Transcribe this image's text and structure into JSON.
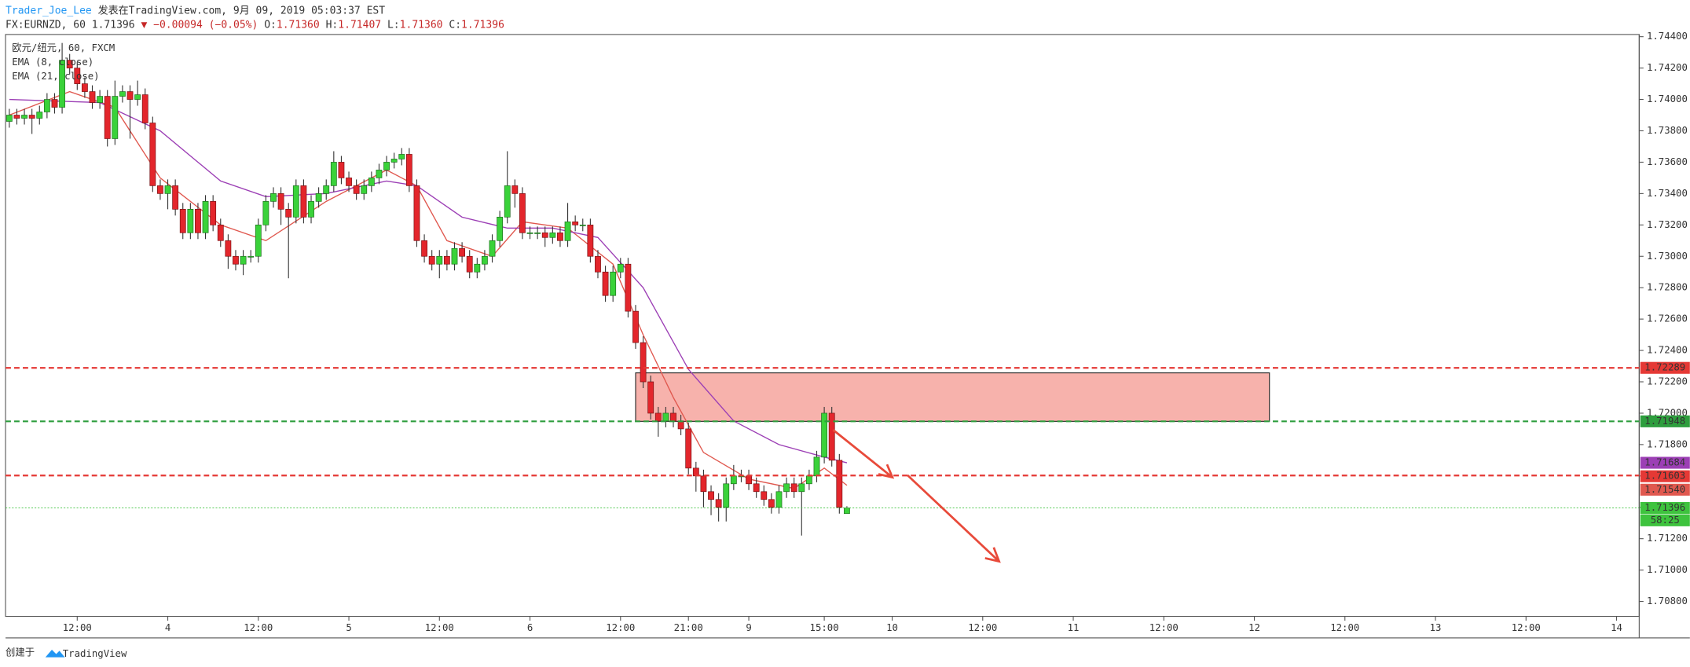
{
  "header": {
    "author": "Trader_Joe_Lee",
    "published": "发表在TradingView.com, 9月 09, 2019 05:03:37 EST",
    "symbol": "FX:EURNZD, 60",
    "last": "1.71396",
    "change": "▼ −0.00094 (−0.05%)",
    "o_label": "O:",
    "o_value": "1.71360",
    "h_label": "H:",
    "h_value": "1.71407",
    "l_label": "L:",
    "l_value": "1.71360",
    "c_label": "C:",
    "c_value": "1.71396"
  },
  "footer": {
    "created": "创建于",
    "brand": "TradingView"
  },
  "chart_data": {
    "type": "candlestick",
    "legend_title": "欧元/纽元, 60, FXCM",
    "xlim": [
      -0.5,
      216
    ],
    "ylim": [
      1.70705,
      1.74414
    ],
    "grid": false,
    "up_color": "#3ad23a",
    "down_color": "#e3262c",
    "open": [
      1.7386,
      1.739,
      1.7388,
      1.739,
      1.7388,
      1.7392,
      1.74,
      1.7395,
      1.7425,
      1.742,
      1.741,
      1.7405,
      1.7398,
      1.7402,
      1.7375,
      1.7402,
      1.7405,
      1.74,
      1.7403,
      1.7385,
      1.7345,
      1.734,
      1.7345,
      1.733,
      1.7315,
      1.733,
      1.7315,
      1.7335,
      1.732,
      1.731,
      1.73,
      1.7295,
      1.73,
      1.73,
      1.732,
      1.7335,
      1.734,
      1.733,
      1.7325,
      1.7345,
      1.7325,
      1.7335,
      1.734,
      1.7345,
      1.736,
      1.735,
      1.7345,
      1.734,
      1.7345,
      1.735,
      1.7355,
      1.736,
      1.7362,
      1.7365,
      1.7345,
      1.731,
      1.73,
      1.7295,
      1.73,
      1.7295,
      1.7305,
      1.73,
      1.729,
      1.7295,
      1.73,
      1.731,
      1.7325,
      1.7345,
      1.734,
      1.7315,
      1.7315,
      1.7315,
      1.7312,
      1.7315,
      1.731,
      1.7322,
      1.732,
      1.732,
      1.73,
      1.729,
      1.7275,
      1.729,
      1.7295,
      1.7265,
      1.7245,
      1.722,
      1.72,
      1.7195,
      1.72,
      1.7195,
      1.719,
      1.7165,
      1.716,
      1.715,
      1.7145,
      1.714,
      1.7155,
      1.716,
      1.716,
      1.7155,
      1.715,
      1.7145,
      1.714,
      1.715,
      1.7155,
      1.715,
      1.7155,
      1.716,
      1.7172,
      1.72,
      1.717,
      1.7136
    ],
    "high": [
      1.7394,
      1.7394,
      1.7394,
      1.7394,
      1.7396,
      1.7404,
      1.7404,
      1.7436,
      1.7429,
      1.7424,
      1.7414,
      1.7409,
      1.7406,
      1.7406,
      1.7412,
      1.7409,
      1.7409,
      1.7412,
      1.7407,
      1.7389,
      1.7349,
      1.7349,
      1.7349,
      1.7334,
      1.7334,
      1.7334,
      1.7339,
      1.7339,
      1.7324,
      1.7314,
      1.7304,
      1.7304,
      1.7304,
      1.7324,
      1.7339,
      1.7344,
      1.7344,
      1.7334,
      1.7349,
      1.7349,
      1.7339,
      1.7344,
      1.7349,
      1.7367,
      1.7364,
      1.7354,
      1.7349,
      1.7349,
      1.7354,
      1.7359,
      1.7364,
      1.7366,
      1.7369,
      1.7369,
      1.7349,
      1.7314,
      1.7304,
      1.7304,
      1.7304,
      1.7309,
      1.7309,
      1.7304,
      1.7299,
      1.7304,
      1.7314,
      1.7329,
      1.7367,
      1.7349,
      1.7344,
      1.7319,
      1.7319,
      1.7319,
      1.7319,
      1.7319,
      1.7334,
      1.7326,
      1.7324,
      1.7324,
      1.7304,
      1.7294,
      1.7294,
      1.7299,
      1.7299,
      1.7269,
      1.7249,
      1.7224,
      1.7204,
      1.7204,
      1.7204,
      1.7199,
      1.7194,
      1.7169,
      1.7164,
      1.7154,
      1.7149,
      1.7159,
      1.7167,
      1.7164,
      1.7164,
      1.7159,
      1.7154,
      1.7149,
      1.7154,
      1.7159,
      1.7159,
      1.7159,
      1.7164,
      1.7176,
      1.7204,
      1.7204,
      1.7174,
      1.71407
    ],
    "low": [
      1.7382,
      1.7384,
      1.7384,
      1.7378,
      1.7384,
      1.7388,
      1.7391,
      1.7391,
      1.7416,
      1.7406,
      1.7401,
      1.7394,
      1.7394,
      1.737,
      1.7371,
      1.7398,
      1.7375,
      1.7396,
      1.7381,
      1.7341,
      1.7336,
      1.733,
      1.7326,
      1.7311,
      1.7311,
      1.7311,
      1.7311,
      1.7316,
      1.7306,
      1.7292,
      1.7291,
      1.7288,
      1.7296,
      1.7296,
      1.7316,
      1.7331,
      1.732,
      1.7286,
      1.7321,
      1.7321,
      1.7321,
      1.7331,
      1.7336,
      1.7341,
      1.7346,
      1.7341,
      1.7336,
      1.7336,
      1.7341,
      1.7346,
      1.7351,
      1.7356,
      1.7358,
      1.7341,
      1.7306,
      1.7296,
      1.7291,
      1.7286,
      1.7291,
      1.7291,
      1.7296,
      1.7286,
      1.7286,
      1.7291,
      1.7296,
      1.7306,
      1.7321,
      1.7331,
      1.7311,
      1.7311,
      1.7311,
      1.7306,
      1.7308,
      1.7306,
      1.7306,
      1.7316,
      1.7316,
      1.7296,
      1.7286,
      1.7271,
      1.7271,
      1.7286,
      1.7261,
      1.7241,
      1.7216,
      1.7196,
      1.7185,
      1.7191,
      1.7191,
      1.7186,
      1.7161,
      1.715,
      1.714,
      1.7135,
      1.7131,
      1.7131,
      1.7151,
      1.7156,
      1.7151,
      1.7146,
      1.7141,
      1.7136,
      1.7136,
      1.7146,
      1.7146,
      1.7122,
      1.7151,
      1.7156,
      1.7168,
      1.7166,
      1.7136,
      1.7136
    ],
    "close": [
      1.739,
      1.7388,
      1.739,
      1.7388,
      1.7392,
      1.74,
      1.7395,
      1.7425,
      1.742,
      1.741,
      1.7405,
      1.7398,
      1.7402,
      1.7375,
      1.7402,
      1.7405,
      1.74,
      1.7403,
      1.7385,
      1.7345,
      1.734,
      1.7345,
      1.733,
      1.7315,
      1.733,
      1.7315,
      1.7335,
      1.732,
      1.731,
      1.73,
      1.7295,
      1.73,
      1.73,
      1.732,
      1.7335,
      1.734,
      1.733,
      1.7325,
      1.7345,
      1.7325,
      1.7335,
      1.734,
      1.7345,
      1.736,
      1.735,
      1.7345,
      1.734,
      1.7345,
      1.735,
      1.7355,
      1.736,
      1.7362,
      1.7365,
      1.7345,
      1.731,
      1.73,
      1.7295,
      1.73,
      1.7295,
      1.7305,
      1.73,
      1.729,
      1.7295,
      1.73,
      1.731,
      1.7325,
      1.7345,
      1.734,
      1.7315,
      1.7315,
      1.7315,
      1.7312,
      1.7315,
      1.731,
      1.7322,
      1.732,
      1.732,
      1.73,
      1.729,
      1.7275,
      1.729,
      1.7295,
      1.7265,
      1.7245,
      1.722,
      1.72,
      1.7195,
      1.72,
      1.7195,
      1.719,
      1.7165,
      1.716,
      1.715,
      1.7145,
      1.714,
      1.7155,
      1.716,
      1.716,
      1.7155,
      1.715,
      1.7145,
      1.714,
      1.715,
      1.7155,
      1.715,
      1.7155,
      1.716,
      1.7172,
      1.72,
      1.717,
      1.714,
      1.71396
    ],
    "series": [
      {
        "name": "EMA (8, close)",
        "color": "#e0584f",
        "tag": "1.71540",
        "x": [
          0,
          8,
          14,
          20,
          28,
          34,
          42,
          50,
          54,
          58,
          64,
          68,
          74,
          80,
          84,
          88,
          92,
          98,
          104,
          108,
          111
        ],
        "values": [
          1.739,
          1.7405,
          1.7395,
          1.735,
          1.732,
          1.731,
          1.7335,
          1.7355,
          1.7345,
          1.731,
          1.73,
          1.7322,
          1.7318,
          1.7295,
          1.725,
          1.721,
          1.7175,
          1.7158,
          1.7152,
          1.7165,
          1.7154
        ]
      },
      {
        "name": "EMA (21, close)",
        "color": "#9c3fb5",
        "tag": "1.71684",
        "x": [
          0,
          12,
          20,
          28,
          34,
          42,
          50,
          54,
          60,
          66,
          72,
          78,
          84,
          90,
          96,
          102,
          108,
          111
        ],
        "values": [
          1.74,
          1.7398,
          1.738,
          1.7348,
          1.7338,
          1.734,
          1.7348,
          1.7345,
          1.7325,
          1.7318,
          1.7318,
          1.7312,
          1.728,
          1.7228,
          1.7195,
          1.718,
          1.7172,
          1.71684
        ]
      }
    ],
    "levels": [
      {
        "value": 1.72289,
        "color": "#e53935",
        "style": "dashed"
      },
      {
        "value": 1.71948,
        "color": "#2e9e3e",
        "style": "dashed"
      },
      {
        "value": 1.71603,
        "color": "#e53935",
        "style": "dashed"
      },
      {
        "value": 1.71396,
        "color": "#3ec33e",
        "style": "dotted",
        "countdown": "58:25"
      }
    ],
    "zone": {
      "x_start": 83,
      "x_end": 167,
      "top": 1.72257,
      "bottom": 1.71948,
      "color": "#f6a49d"
    },
    "yticks": [
      {
        "value": 1.744,
        "label": "1.74400"
      },
      {
        "value": 1.742,
        "label": "1.74200"
      },
      {
        "value": 1.74,
        "label": "1.74000"
      },
      {
        "value": 1.738,
        "label": "1.73800"
      },
      {
        "value": 1.736,
        "label": "1.73600"
      },
      {
        "value": 1.734,
        "label": "1.73400"
      },
      {
        "value": 1.732,
        "label": "1.73200"
      },
      {
        "value": 1.73,
        "label": "1.73000"
      },
      {
        "value": 1.728,
        "label": "1.72800"
      },
      {
        "value": 1.726,
        "label": "1.72600"
      },
      {
        "value": 1.724,
        "label": "1.72400"
      },
      {
        "value": 1.722,
        "label": "1.72200"
      },
      {
        "value": 1.72,
        "label": "1.72000"
      },
      {
        "value": 1.718,
        "label": "1.71800"
      },
      {
        "value": 1.716,
        "label": "1.71600"
      },
      {
        "value": 1.714,
        "label": "1.71400"
      },
      {
        "value": 1.712,
        "label": "1.71200"
      },
      {
        "value": 1.71,
        "label": "1.71000"
      },
      {
        "value": 1.708,
        "label": "1.70800"
      }
    ],
    "xticks": [
      {
        "value": 9,
        "label": "12:00"
      },
      {
        "value": 21,
        "label": "4"
      },
      {
        "value": 33,
        "label": "12:00"
      },
      {
        "value": 45,
        "label": "5"
      },
      {
        "value": 57,
        "label": "12:00"
      },
      {
        "value": 69,
        "label": "6"
      },
      {
        "value": 81,
        "label": "12:00"
      },
      {
        "value": 90,
        "label": "21:00"
      },
      {
        "value": 98,
        "label": "9"
      },
      {
        "value": 108,
        "label": "15:00"
      },
      {
        "value": 117,
        "label": "10"
      },
      {
        "value": 129,
        "label": "12:00"
      },
      {
        "value": 141,
        "label": "11"
      },
      {
        "value": 153,
        "label": "12:00"
      },
      {
        "value": 165,
        "label": "12"
      },
      {
        "value": 177,
        "label": "12:00"
      },
      {
        "value": 189,
        "label": "13"
      },
      {
        "value": 201,
        "label": "12:00"
      },
      {
        "value": 213,
        "label": "14"
      }
    ]
  }
}
